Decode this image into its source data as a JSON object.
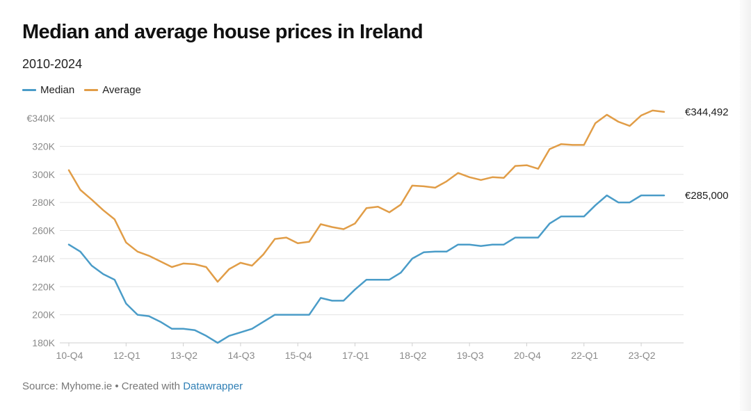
{
  "header": {
    "title": "Median and average house prices in Ireland",
    "subtitle": "2010-2024"
  },
  "footer": {
    "source_text": "Source: Myhome.ie • Created with ",
    "link_text": "Datawrapper"
  },
  "colors": {
    "median": "#4a9cc8",
    "average": "#e19d47",
    "grid": "#e3e3e3",
    "axis": "#cfcfcf",
    "tick_label": "#8a8a8a",
    "link": "#2f7fb5"
  },
  "chart_data": {
    "type": "line",
    "title": "Median and average house prices in Ireland",
    "subtitle": "2010-2024",
    "x": [
      "10-Q4",
      "11-Q1",
      "11-Q2",
      "11-Q3",
      "11-Q4",
      "12-Q1",
      "12-Q2",
      "12-Q3",
      "12-Q4",
      "13-Q1",
      "13-Q2",
      "13-Q3",
      "13-Q4",
      "14-Q1",
      "14-Q2",
      "14-Q3",
      "14-Q4",
      "15-Q1",
      "15-Q2",
      "15-Q3",
      "15-Q4",
      "16-Q1",
      "16-Q2",
      "16-Q3",
      "16-Q4",
      "17-Q1",
      "17-Q2",
      "17-Q3",
      "17-Q4",
      "18-Q1",
      "18-Q2",
      "18-Q3",
      "18-Q4",
      "19-Q1",
      "19-Q2",
      "19-Q3",
      "19-Q4",
      "20-Q1",
      "20-Q2",
      "20-Q3",
      "20-Q4",
      "21-Q1",
      "21-Q2",
      "21-Q3",
      "21-Q4",
      "22-Q1",
      "22-Q2",
      "22-Q3",
      "22-Q4",
      "23-Q1",
      "23-Q2",
      "23-Q3",
      "23-Q4"
    ],
    "x_tick_labels": [
      "10-Q4",
      "12-Q1",
      "13-Q2",
      "14-Q3",
      "15-Q4",
      "17-Q1",
      "18-Q2",
      "19-Q3",
      "20-Q4",
      "22-Q1",
      "23-Q2"
    ],
    "y_ticks": [
      180000,
      200000,
      220000,
      240000,
      260000,
      280000,
      300000,
      320000,
      340000
    ],
    "y_tick_labels": [
      "180K",
      "200K",
      "220K",
      "240K",
      "260K",
      "280K",
      "300K",
      "320K",
      "€340K"
    ],
    "ylim": [
      180000,
      340000
    ],
    "xlabel": "",
    "ylabel": "",
    "grid": true,
    "legend_position": "top-left",
    "series": [
      {
        "name": "Median",
        "color": "#4a9cc8",
        "end_label": "€285,000",
        "values": [
          250000,
          245000,
          235000,
          229000,
          225000,
          208000,
          200000,
          199000,
          195000,
          190000,
          190000,
          189000,
          185000,
          180000,
          185000,
          187500,
          190000,
          195000,
          200000,
          200000,
          200000,
          200000,
          212000,
          210000,
          210000,
          218000,
          225000,
          225000,
          225000,
          230000,
          240000,
          244500,
          245000,
          245000,
          250000,
          250000,
          249000,
          250000,
          250000,
          255000,
          255000,
          255000,
          265000,
          270000,
          270000,
          270000,
          278000,
          285000,
          280000,
          280000,
          285000,
          285000,
          285000
        ]
      },
      {
        "name": "Average",
        "color": "#e19d47",
        "end_label": "€344,492",
        "values": [
          303000,
          289000,
          282000,
          274500,
          268000,
          251500,
          245000,
          242000,
          238000,
          234000,
          236500,
          236000,
          234000,
          223500,
          232500,
          237000,
          235000,
          243000,
          254000,
          255000,
          251000,
          252000,
          264500,
          262500,
          261000,
          265000,
          276000,
          277000,
          273000,
          278500,
          292000,
          291500,
          290500,
          295000,
          301000,
          298000,
          296000,
          298000,
          297500,
          306000,
          306500,
          304000,
          318000,
          321500,
          321000,
          321000,
          336500,
          342500,
          337500,
          334500,
          342000,
          345500,
          344492
        ]
      }
    ]
  }
}
